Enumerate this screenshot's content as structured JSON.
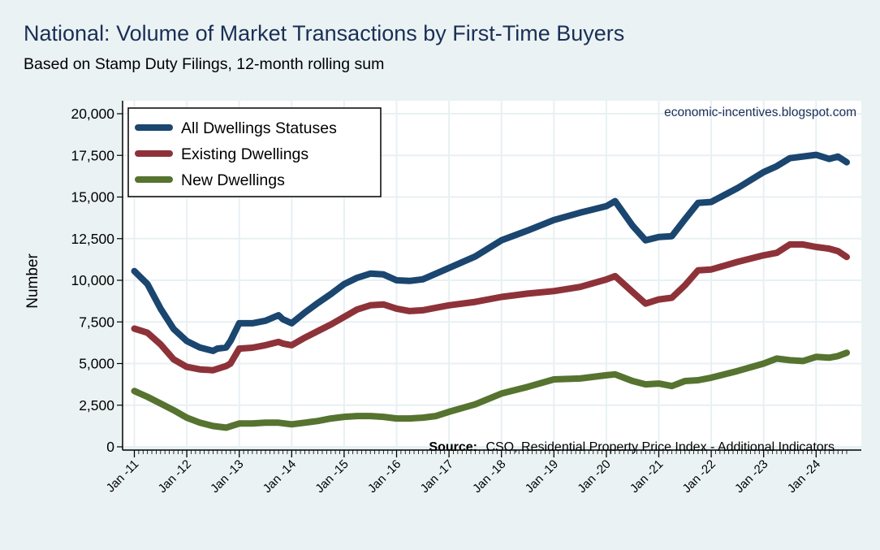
{
  "header": {
    "title": "National: Volume of Market Transactions by First-Time Buyers",
    "subtitle": "Based on Stamp Duty Filings, 12-month rolling sum"
  },
  "chart_data": {
    "type": "line",
    "title": "National: Volume of Market Transactions by First-Time Buyers",
    "subtitle": "Based on Stamp Duty Filings, 12-month rolling sum",
    "xlabel": "",
    "ylabel": "Number",
    "ylim": [
      0,
      20000
    ],
    "yticks": [
      0,
      2500,
      5000,
      7500,
      10000,
      12500,
      15000,
      17500,
      20000
    ],
    "ytick_labels": [
      "0",
      "2,500",
      "5,000",
      "7,500",
      "10,000",
      "12,500",
      "15,000",
      "17,500",
      "20,000"
    ],
    "xrange": [
      "2011-01",
      "2024-08"
    ],
    "xtick_labels": [
      "Jan -11",
      "Jan -12",
      "Jan -13",
      "Jan -14",
      "Jan -15",
      "Jan -16",
      "Jan -17",
      "Jan -18",
      "Jan -19",
      "Jan -20",
      "Jan -21",
      "Jan -22",
      "Jan -23",
      "Jan -24"
    ],
    "grid": true,
    "legend_position": "top-left",
    "watermark": "economic-incentives.blogspot.com",
    "source_label": "Source:",
    "source_text": "CSO, Residential Property Price Index - Additional Indicators",
    "series": [
      {
        "name": "All Dwellings Statuses",
        "color": "#1a4670",
        "points": [
          [
            "2011-01",
            10550
          ],
          [
            "2011-04",
            9770
          ],
          [
            "2011-07",
            8300
          ],
          [
            "2011-10",
            7080
          ],
          [
            "2012-01",
            6350
          ],
          [
            "2012-04",
            5960
          ],
          [
            "2012-07",
            5760
          ],
          [
            "2012-08",
            5900
          ],
          [
            "2012-10",
            5960
          ],
          [
            "2012-11",
            6350
          ],
          [
            "2013-01",
            7420
          ],
          [
            "2013-04",
            7420
          ],
          [
            "2013-07",
            7570
          ],
          [
            "2013-10",
            7900
          ],
          [
            "2013-11",
            7660
          ],
          [
            "2014-01",
            7420
          ],
          [
            "2014-04",
            8060
          ],
          [
            "2014-07",
            8640
          ],
          [
            "2014-10",
            9180
          ],
          [
            "2015-01",
            9770
          ],
          [
            "2015-04",
            10150
          ],
          [
            "2015-07",
            10400
          ],
          [
            "2015-10",
            10350
          ],
          [
            "2016-01",
            10000
          ],
          [
            "2016-04",
            9960
          ],
          [
            "2016-07",
            10060
          ],
          [
            "2016-10",
            10400
          ],
          [
            "2017-01",
            10740
          ],
          [
            "2017-07",
            11430
          ],
          [
            "2018-01",
            12400
          ],
          [
            "2018-07",
            12990
          ],
          [
            "2019-01",
            13620
          ],
          [
            "2019-07",
            14060
          ],
          [
            "2020-01",
            14450
          ],
          [
            "2020-03",
            14750
          ],
          [
            "2020-07",
            13280
          ],
          [
            "2020-10",
            12400
          ],
          [
            "2021-01",
            12600
          ],
          [
            "2021-04",
            12650
          ],
          [
            "2021-07",
            13670
          ],
          [
            "2021-10",
            14650
          ],
          [
            "2022-01",
            14700
          ],
          [
            "2022-07",
            15530
          ],
          [
            "2023-01",
            16500
          ],
          [
            "2023-04",
            16850
          ],
          [
            "2023-07",
            17330
          ],
          [
            "2024-01",
            17530
          ],
          [
            "2024-04",
            17290
          ],
          [
            "2024-06",
            17430
          ],
          [
            "2024-08",
            17090
          ]
        ]
      },
      {
        "name": "Existing Dwellings",
        "color": "#8e3239",
        "points": [
          [
            "2011-01",
            7100
          ],
          [
            "2011-04",
            6850
          ],
          [
            "2011-07",
            6150
          ],
          [
            "2011-10",
            5250
          ],
          [
            "2012-01",
            4800
          ],
          [
            "2012-04",
            4650
          ],
          [
            "2012-07",
            4600
          ],
          [
            "2012-10",
            4850
          ],
          [
            "2012-11",
            5000
          ],
          [
            "2013-01",
            5900
          ],
          [
            "2013-04",
            5950
          ],
          [
            "2013-07",
            6100
          ],
          [
            "2013-10",
            6300
          ],
          [
            "2013-11",
            6200
          ],
          [
            "2014-01",
            6100
          ],
          [
            "2014-04",
            6550
          ],
          [
            "2014-07",
            6950
          ],
          [
            "2014-10",
            7350
          ],
          [
            "2015-01",
            7800
          ],
          [
            "2015-04",
            8250
          ],
          [
            "2015-07",
            8500
          ],
          [
            "2015-10",
            8550
          ],
          [
            "2016-01",
            8300
          ],
          [
            "2016-04",
            8150
          ],
          [
            "2016-07",
            8200
          ],
          [
            "2016-10",
            8350
          ],
          [
            "2017-01",
            8500
          ],
          [
            "2017-07",
            8700
          ],
          [
            "2018-01",
            9000
          ],
          [
            "2018-07",
            9200
          ],
          [
            "2019-01",
            9350
          ],
          [
            "2019-07",
            9600
          ],
          [
            "2020-01",
            10050
          ],
          [
            "2020-03",
            10250
          ],
          [
            "2020-07",
            9300
          ],
          [
            "2020-10",
            8600
          ],
          [
            "2021-01",
            8850
          ],
          [
            "2021-04",
            8950
          ],
          [
            "2021-07",
            9700
          ],
          [
            "2021-10",
            10600
          ],
          [
            "2022-01",
            10650
          ],
          [
            "2022-07",
            11100
          ],
          [
            "2023-01",
            11500
          ],
          [
            "2023-04",
            11650
          ],
          [
            "2023-07",
            12150
          ],
          [
            "2023-10",
            12150
          ],
          [
            "2024-01",
            12000
          ],
          [
            "2024-04",
            11900
          ],
          [
            "2024-06",
            11750
          ],
          [
            "2024-08",
            11400
          ]
        ]
      },
      {
        "name": "New Dwellings",
        "color": "#56732f",
        "points": [
          [
            "2011-01",
            3350
          ],
          [
            "2011-04",
            3000
          ],
          [
            "2011-07",
            2600
          ],
          [
            "2011-10",
            2200
          ],
          [
            "2012-01",
            1750
          ],
          [
            "2012-04",
            1450
          ],
          [
            "2012-07",
            1250
          ],
          [
            "2012-10",
            1150
          ],
          [
            "2013-01",
            1400
          ],
          [
            "2013-04",
            1400
          ],
          [
            "2013-07",
            1450
          ],
          [
            "2013-10",
            1450
          ],
          [
            "2014-01",
            1350
          ],
          [
            "2014-04",
            1450
          ],
          [
            "2014-07",
            1550
          ],
          [
            "2014-10",
            1700
          ],
          [
            "2015-01",
            1800
          ],
          [
            "2015-04",
            1850
          ],
          [
            "2015-07",
            1850
          ],
          [
            "2015-10",
            1800
          ],
          [
            "2016-01",
            1700
          ],
          [
            "2016-04",
            1700
          ],
          [
            "2016-07",
            1750
          ],
          [
            "2016-10",
            1850
          ],
          [
            "2017-01",
            2100
          ],
          [
            "2017-07",
            2550
          ],
          [
            "2018-01",
            3200
          ],
          [
            "2018-07",
            3600
          ],
          [
            "2019-01",
            4050
          ],
          [
            "2019-07",
            4100
          ],
          [
            "2020-01",
            4300
          ],
          [
            "2020-03",
            4350
          ],
          [
            "2020-07",
            3950
          ],
          [
            "2020-10",
            3750
          ],
          [
            "2021-01",
            3800
          ],
          [
            "2021-04",
            3650
          ],
          [
            "2021-07",
            3950
          ],
          [
            "2021-10",
            4000
          ],
          [
            "2022-01",
            4150
          ],
          [
            "2022-07",
            4550
          ],
          [
            "2023-01",
            5000
          ],
          [
            "2023-04",
            5300
          ],
          [
            "2023-07",
            5200
          ],
          [
            "2023-10",
            5150
          ],
          [
            "2024-01",
            5400
          ],
          [
            "2024-04",
            5350
          ],
          [
            "2024-06",
            5450
          ],
          [
            "2024-08",
            5650
          ]
        ]
      }
    ]
  }
}
